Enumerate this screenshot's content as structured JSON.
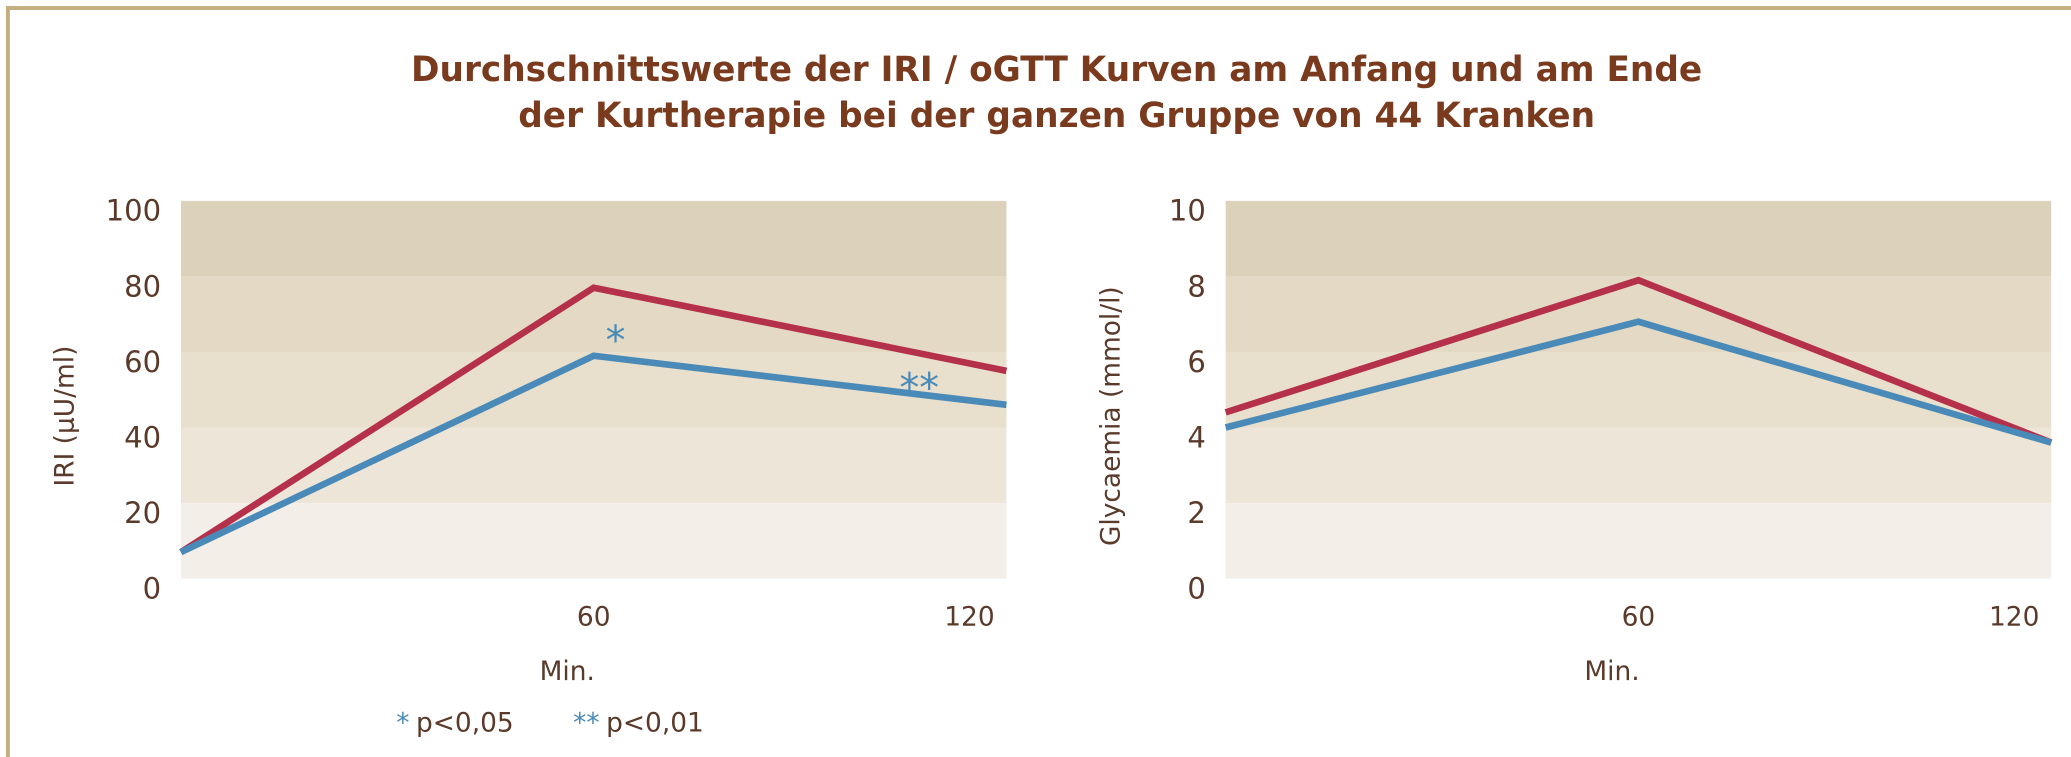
{
  "title": [
    "Durchschnittswerte der IRI / oGTT Kurven am Anfang und am Ende",
    "der Kurtherapie bei der ganzen Gruppe von 44 Kranken"
  ],
  "chart_data": [
    {
      "type": "line",
      "y_label": "IRI (µU/ml)",
      "x_label": "Min.",
      "x": [
        0,
        60,
        120
      ],
      "xlim": [
        0,
        120
      ],
      "xticks": [
        60,
        120
      ],
      "ylim": [
        0,
        100
      ],
      "yticks": [
        0,
        20,
        40,
        60,
        80,
        100
      ],
      "series": [
        {
          "color": "#b5304a",
          "values": [
            7,
            77,
            55
          ]
        },
        {
          "color": "#4a8ab8",
          "values": [
            7,
            59,
            46
          ]
        }
      ],
      "annotations": [
        {
          "text": "*",
          "color": "#4a8ab8"
        },
        {
          "text": "**",
          "color": "#4a8ab8"
        }
      ],
      "footnotes": [
        {
          "symbol": "*",
          "text": "p<0,05",
          "color": "#4a8ab8"
        },
        {
          "symbol": "**",
          "text": "p<0,01",
          "color": "#4a8ab8"
        }
      ]
    },
    {
      "type": "line",
      "y_label": "Glycaemia (mmol/l)",
      "x_label": "Min.",
      "x": [
        0,
        60,
        120
      ],
      "xlim": [
        0,
        120
      ],
      "xticks": [
        60,
        120
      ],
      "ylim": [
        0,
        10
      ],
      "yticks": [
        0,
        2,
        4,
        6,
        8,
        10
      ],
      "series": [
        {
          "color": "#b5304a",
          "values": [
            4.4,
            7.9,
            3.6
          ]
        },
        {
          "color": "#4a8ab8",
          "values": [
            4.0,
            6.8,
            3.6
          ]
        }
      ]
    }
  ]
}
